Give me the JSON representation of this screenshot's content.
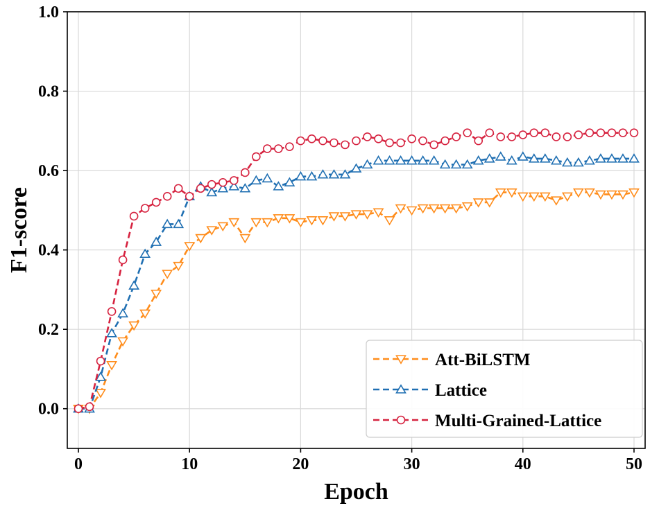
{
  "chart_data": {
    "type": "line",
    "title": "",
    "xlabel": "Epoch",
    "ylabel": "F1-score",
    "xlim": [
      -1,
      51
    ],
    "ylim": [
      -0.1,
      1.0
    ],
    "xticks": [
      0,
      10,
      20,
      30,
      40,
      50
    ],
    "xtick_labels": [
      "0",
      "10",
      "20",
      "30",
      "40",
      "50"
    ],
    "yticks": [
      0.0,
      0.2,
      0.4,
      0.6,
      0.8,
      1.0
    ],
    "ytick_labels": [
      "0.0",
      "0.2",
      "0.4",
      "0.6",
      "0.8",
      "1.0"
    ],
    "grid": true,
    "legend_position": "bottom-right",
    "x": [
      0,
      1,
      2,
      3,
      4,
      5,
      6,
      7,
      8,
      9,
      10,
      11,
      12,
      13,
      14,
      15,
      16,
      17,
      18,
      19,
      20,
      21,
      22,
      23,
      24,
      25,
      26,
      27,
      28,
      29,
      30,
      31,
      32,
      33,
      34,
      35,
      36,
      37,
      38,
      39,
      40,
      41,
      42,
      43,
      44,
      45,
      46,
      47,
      48,
      49,
      50
    ],
    "series": [
      {
        "name": "Att-BiLSTM",
        "color": "#ff8c1a",
        "marker": "triangle-down",
        "values": [
          0.0,
          0.0,
          0.04,
          0.11,
          0.17,
          0.21,
          0.24,
          0.29,
          0.34,
          0.36,
          0.41,
          0.43,
          0.45,
          0.46,
          0.47,
          0.43,
          0.47,
          0.47,
          0.48,
          0.48,
          0.47,
          0.475,
          0.475,
          0.485,
          0.485,
          0.49,
          0.49,
          0.495,
          0.475,
          0.505,
          0.5,
          0.505,
          0.505,
          0.505,
          0.505,
          0.51,
          0.52,
          0.52,
          0.545,
          0.545,
          0.535,
          0.535,
          0.535,
          0.525,
          0.535,
          0.545,
          0.545,
          0.54,
          0.54,
          0.54,
          0.545
        ]
      },
      {
        "name": "Lattice",
        "color": "#1f6fb2",
        "marker": "triangle-up",
        "values": [
          0.0,
          0.0,
          0.08,
          0.19,
          0.24,
          0.31,
          0.39,
          0.42,
          0.465,
          0.465,
          0.535,
          0.56,
          0.545,
          0.555,
          0.56,
          0.555,
          0.575,
          0.58,
          0.56,
          0.57,
          0.585,
          0.585,
          0.59,
          0.59,
          0.59,
          0.605,
          0.615,
          0.625,
          0.625,
          0.625,
          0.625,
          0.625,
          0.625,
          0.615,
          0.615,
          0.615,
          0.625,
          0.63,
          0.635,
          0.625,
          0.635,
          0.63,
          0.63,
          0.625,
          0.62,
          0.62,
          0.625,
          0.63,
          0.63,
          0.63,
          0.63
        ]
      },
      {
        "name": "Multi-Grained-Lattice",
        "color": "#d6223f",
        "marker": "circle",
        "values": [
          0.0,
          0.005,
          0.12,
          0.245,
          0.375,
          0.485,
          0.505,
          0.52,
          0.535,
          0.555,
          0.535,
          0.555,
          0.565,
          0.57,
          0.575,
          0.595,
          0.635,
          0.655,
          0.655,
          0.66,
          0.675,
          0.68,
          0.675,
          0.67,
          0.665,
          0.675,
          0.685,
          0.68,
          0.67,
          0.67,
          0.68,
          0.675,
          0.665,
          0.675,
          0.685,
          0.695,
          0.675,
          0.695,
          0.685,
          0.685,
          0.69,
          0.695,
          0.695,
          0.685,
          0.685,
          0.69,
          0.695,
          0.695,
          0.695,
          0.695,
          0.695
        ]
      }
    ]
  }
}
